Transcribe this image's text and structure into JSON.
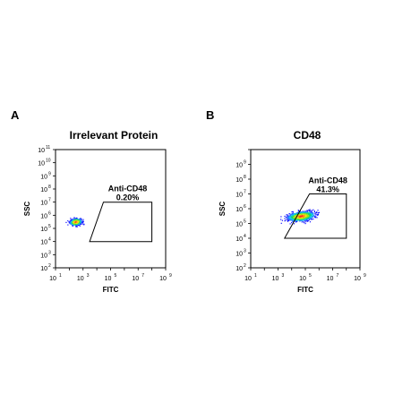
{
  "chart_data": [
    {
      "type": "scatter",
      "panel_label": "A",
      "title": "Irrelevant Protein",
      "xlabel": "FITC",
      "ylabel": "SSC",
      "x_scale": "log",
      "y_scale": "log",
      "xlim": [
        10,
        1000000000
      ],
      "ylim": [
        100,
        100000000000
      ],
      "x_ticks": [
        1,
        3,
        5,
        7,
        9
      ],
      "y_ticks": [
        2,
        3,
        4,
        5,
        6,
        7,
        8,
        9,
        10,
        11
      ],
      "tick_base": "10",
      "population": {
        "x_center": 300,
        "y_center": 300000,
        "density": "single dense cluster"
      },
      "gate": {
        "name": "Anti-CD48",
        "percent": "0.20%",
        "vertices": [
          [
            3000,
            10000
          ],
          [
            100000000,
            10000
          ],
          [
            100000000,
            10000000
          ],
          [
            30000,
            10000000
          ]
        ]
      }
    },
    {
      "type": "scatter",
      "panel_label": "B",
      "title": "CD48",
      "xlabel": "FITC",
      "ylabel": "SSC",
      "x_scale": "log",
      "y_scale": "log",
      "xlim": [
        10,
        1000000000
      ],
      "ylim": [
        100,
        10000000000
      ],
      "x_ticks": [
        1,
        3,
        5,
        7,
        9
      ],
      "y_ticks": [
        2,
        3,
        4,
        5,
        6,
        7,
        8,
        9
      ],
      "tick_base": "10",
      "population": {
        "x_center": 50000,
        "y_center": 300000,
        "density": "broad elongated cluster"
      },
      "gate": {
        "name": "Anti-CD48",
        "percent": "41.3%",
        "vertices": [
          [
            3000,
            10000
          ],
          [
            100000000,
            10000
          ],
          [
            100000000,
            10000000
          ],
          [
            200000,
            10000000
          ]
        ]
      }
    }
  ]
}
